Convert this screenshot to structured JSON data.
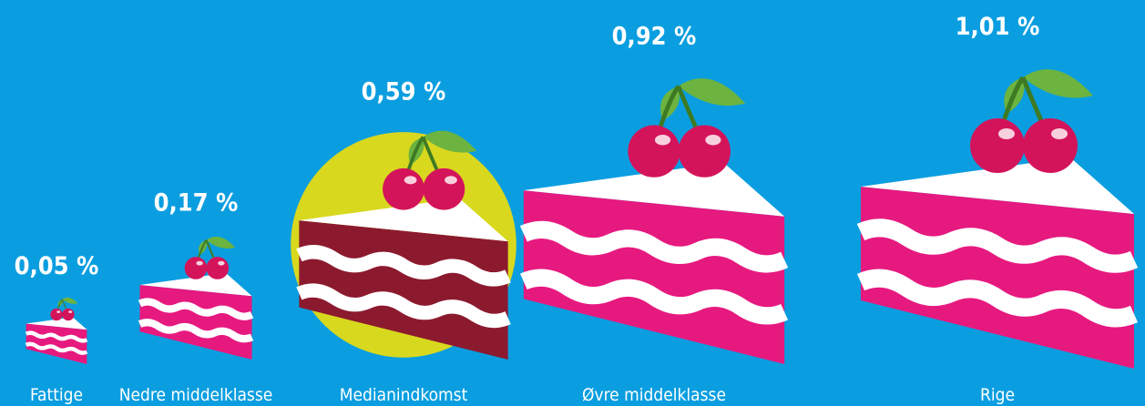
{
  "chart_data": {
    "type": "pictograph",
    "categories": [
      "Fattige",
      "Nedre middelklasse",
      "Medianindkomst",
      "Øvre middelklasse",
      "Rige"
    ],
    "values": [
      0.05,
      0.17,
      0.59,
      0.92,
      1.01
    ],
    "value_labels": [
      "0,05 %",
      "0,17 %",
      "0,59 %",
      "0,92 %",
      "1,01 %"
    ],
    "colors": [
      "#e6197f",
      "#e6197f",
      "#8c1a2f",
      "#e6197f",
      "#e6197f"
    ],
    "highlight_index": 2,
    "highlight_color": "#d8d81e"
  }
}
